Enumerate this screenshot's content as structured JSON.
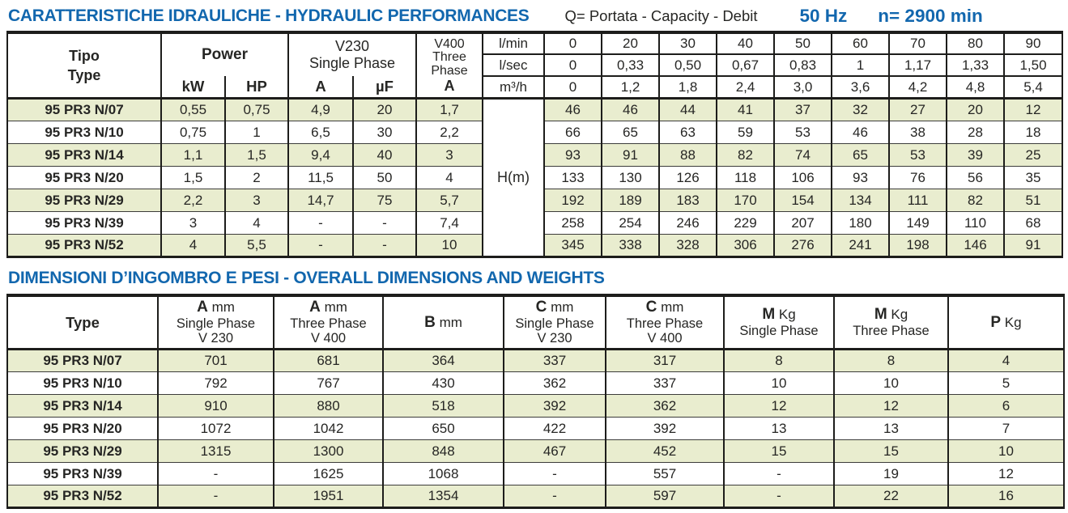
{
  "theme": {
    "accent_blue": "#1267ae",
    "stripe_green": "#e9edcf",
    "border_black": "#1d1d1b"
  },
  "header": {
    "title": "CARATTERISTICHE IDRAULICHE - HYDRAULIC PERFORMANCES",
    "subtitle": "Q= Portata - Capacity - Debit",
    "frequency": "50 Hz",
    "speed": "n= 2900 min"
  },
  "hydraulic": {
    "header": {
      "tipo": "Tipo",
      "type": "Type",
      "power": "Power",
      "kw": "kW",
      "hp": "HP",
      "v230_line1": "V230",
      "v230_line2": "Single Phase",
      "a": "A",
      "uf": "µF",
      "v400_line1": "V400",
      "v400_line2": "Three",
      "v400_line3": "Phase",
      "v400_amp": "A",
      "flow_units": [
        "l/min",
        "l/sec",
        "m³/h"
      ]
    },
    "flow": {
      "lmin": [
        "0",
        "20",
        "30",
        "40",
        "50",
        "60",
        "70",
        "80",
        "90"
      ],
      "lsec": [
        "0",
        "0,33",
        "0,50",
        "0,67",
        "0,83",
        "1",
        "1,17",
        "1,33",
        "1,50"
      ],
      "m3h": [
        "0",
        "1,2",
        "1,8",
        "2,4",
        "3,0",
        "3,6",
        "4,2",
        "4,8",
        "5,4"
      ]
    },
    "head_label": "H(m)",
    "rows": [
      {
        "type": "95 PR3 N/07",
        "kw": "0,55",
        "hp": "0,75",
        "a": "4,9",
        "uf": "20",
        "a400": "1,7",
        "h": [
          "46",
          "46",
          "44",
          "41",
          "37",
          "32",
          "27",
          "20",
          "12"
        ]
      },
      {
        "type": "95 PR3 N/10",
        "kw": "0,75",
        "hp": "1",
        "a": "6,5",
        "uf": "30",
        "a400": "2,2",
        "h": [
          "66",
          "65",
          "63",
          "59",
          "53",
          "46",
          "38",
          "28",
          "18"
        ]
      },
      {
        "type": "95 PR3 N/14",
        "kw": "1,1",
        "hp": "1,5",
        "a": "9,4",
        "uf": "40",
        "a400": "3",
        "h": [
          "93",
          "91",
          "88",
          "82",
          "74",
          "65",
          "53",
          "39",
          "25"
        ]
      },
      {
        "type": "95 PR3 N/20",
        "kw": "1,5",
        "hp": "2",
        "a": "11,5",
        "uf": "50",
        "a400": "4",
        "h": [
          "133",
          "130",
          "126",
          "118",
          "106",
          "93",
          "76",
          "56",
          "35"
        ]
      },
      {
        "type": "95 PR3 N/29",
        "kw": "2,2",
        "hp": "3",
        "a": "14,7",
        "uf": "75",
        "a400": "5,7",
        "h": [
          "192",
          "189",
          "183",
          "170",
          "154",
          "134",
          "111",
          "82",
          "51"
        ]
      },
      {
        "type": "95 PR3 N/39",
        "kw": "3",
        "hp": "4",
        "a": "-",
        "uf": "-",
        "a400": "7,4",
        "h": [
          "258",
          "254",
          "246",
          "229",
          "207",
          "180",
          "149",
          "110",
          "68"
        ]
      },
      {
        "type": "95 PR3 N/52",
        "kw": "4",
        "hp": "5,5",
        "a": "-",
        "uf": "-",
        "a400": "10",
        "h": [
          "345",
          "338",
          "328",
          "306",
          "276",
          "241",
          "198",
          "146",
          "91"
        ]
      }
    ]
  },
  "dimensions": {
    "title": "DIMENSIONI D’INGOMBRO E PESI - OVERALL DIMENSIONS AND WEIGHTS",
    "headers": [
      {
        "label": "Type"
      },
      {
        "letter": "A",
        "unit": "mm",
        "line2": "Single Phase",
        "line3": "V 230"
      },
      {
        "letter": "A",
        "unit": "mm",
        "line2": "Three Phase",
        "line3": "V 400"
      },
      {
        "letter": "B",
        "unit": "mm"
      },
      {
        "letter": "C",
        "unit": "mm",
        "line2": "Single Phase",
        "line3": "V 230"
      },
      {
        "letter": "C",
        "unit": "mm",
        "line2": "Three Phase",
        "line3": "V 400"
      },
      {
        "letter": "M",
        "unit": "Kg",
        "line2": "Single Phase"
      },
      {
        "letter": "M",
        "unit": "Kg",
        "line2": "Three Phase"
      },
      {
        "letter": "P",
        "unit": "Kg"
      }
    ],
    "rows": [
      [
        "95 PR3 N/07",
        "701",
        "681",
        "364",
        "337",
        "317",
        "8",
        "8",
        "4"
      ],
      [
        "95 PR3 N/10",
        "792",
        "767",
        "430",
        "362",
        "337",
        "10",
        "10",
        "5"
      ],
      [
        "95 PR3 N/14",
        "910",
        "880",
        "518",
        "392",
        "362",
        "12",
        "12",
        "6"
      ],
      [
        "95 PR3 N/20",
        "1072",
        "1042",
        "650",
        "422",
        "392",
        "13",
        "13",
        "7"
      ],
      [
        "95 PR3 N/29",
        "1315",
        "1300",
        "848",
        "467",
        "452",
        "15",
        "15",
        "10"
      ],
      [
        "95 PR3 N/39",
        "-",
        "1625",
        "1068",
        "-",
        "557",
        "-",
        "19",
        "12"
      ],
      [
        "95 PR3 N/52",
        "-",
        "1951",
        "1354",
        "-",
        "597",
        "-",
        "22",
        "16"
      ]
    ]
  }
}
